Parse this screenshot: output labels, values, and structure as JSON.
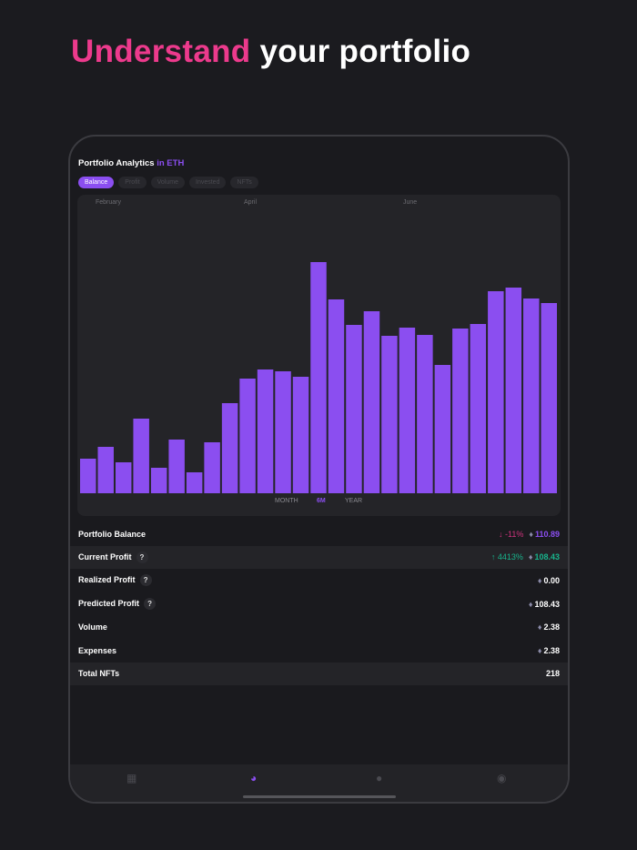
{
  "headline": {
    "highlight": "Understand",
    "rest": " your portfolio"
  },
  "analytics": {
    "title": "Portfolio Analytics",
    "unit": "in ETH",
    "chips": [
      "Balance",
      "Profit",
      "Volume",
      "Invested",
      "NFTs"
    ],
    "active_chip": 0,
    "months": [
      "February",
      "April",
      "June"
    ],
    "ranges": [
      "MONTH",
      "6M",
      "YEAR"
    ],
    "active_range": 1
  },
  "chart_data": {
    "type": "bar",
    "color": "#8b4ef0",
    "values": [
      38,
      51,
      34,
      82,
      28,
      59,
      23,
      56,
      99,
      126,
      136,
      134,
      128,
      254,
      213,
      185,
      200,
      173,
      182,
      174,
      141,
      181,
      186,
      222,
      226,
      214,
      209
    ],
    "xlabel": "",
    "ylabel": "",
    "grid": false
  },
  "stats": [
    {
      "label": "Portfolio Balance",
      "change": "↓ -11%",
      "value": "110.89",
      "style": "purple",
      "change_style": "neg",
      "help": false,
      "eth": true
    },
    {
      "label": "Current Profit",
      "change": "↑ 4413%",
      "value": "108.43",
      "style": "green",
      "change_style": "pos",
      "help": true,
      "eth": true
    },
    {
      "label": "Realized Profit",
      "value": "0.00",
      "help": true,
      "eth": true
    },
    {
      "label": "Predicted Profit",
      "value": "108.43",
      "help": true,
      "eth": true
    },
    {
      "label": "Volume",
      "value": "2.38",
      "help": false,
      "eth": true
    },
    {
      "label": "Expenses",
      "value": "2.38",
      "help": false,
      "eth": true
    },
    {
      "label": "Total NFTs",
      "value": "218",
      "help": false,
      "eth": false
    }
  ],
  "tabbar": {
    "icons": [
      "dashboard-icon",
      "analytics-pie-icon",
      "profile-icon",
      "discord-icon"
    ],
    "active": 1
  },
  "icons": {
    "eth": "♦",
    "help": "?"
  }
}
